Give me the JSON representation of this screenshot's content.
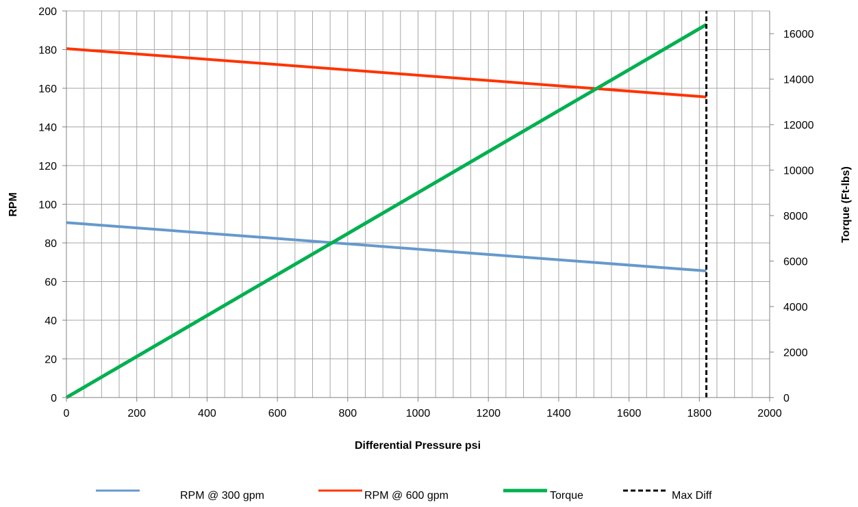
{
  "chart_data": {
    "type": "line",
    "xlabel": "Differential Pressure psi",
    "ylabel": "RPM",
    "y2label": "Torque (Ft-lbs)",
    "xlim": [
      0,
      2000
    ],
    "ylim": [
      0,
      200
    ],
    "y2lim": [
      0,
      17000
    ],
    "x_ticks": [
      0,
      200,
      400,
      600,
      800,
      1000,
      1200,
      1400,
      1600,
      1800,
      2000
    ],
    "y_ticks": [
      0,
      20,
      40,
      60,
      80,
      100,
      120,
      140,
      160,
      180,
      200
    ],
    "y2_ticks": [
      0,
      2000,
      4000,
      6000,
      8000,
      10000,
      12000,
      14000,
      16000
    ],
    "grid": true,
    "legend_position": "bottom",
    "series": [
      {
        "name": "RPM @ 300 gpm",
        "axis": "left",
        "color": "#6699cc",
        "dash": "solid",
        "x": [
          0,
          1820
        ],
        "y": [
          90.5,
          65.5
        ]
      },
      {
        "name": "RPM @ 600 gpm",
        "axis": "left",
        "color": "#ff3300",
        "dash": "solid",
        "x": [
          0,
          1820
        ],
        "y": [
          180.5,
          155.5
        ]
      },
      {
        "name": "Torque",
        "axis": "right",
        "color": "#00b050",
        "dash": "solid",
        "x": [
          0,
          1820
        ],
        "y": [
          0,
          16400
        ]
      },
      {
        "name": "Max Diff",
        "axis": "left",
        "color": "#000000",
        "dash": "dashed",
        "x": [
          1820,
          1820
        ],
        "y": [
          0,
          200
        ]
      }
    ]
  }
}
